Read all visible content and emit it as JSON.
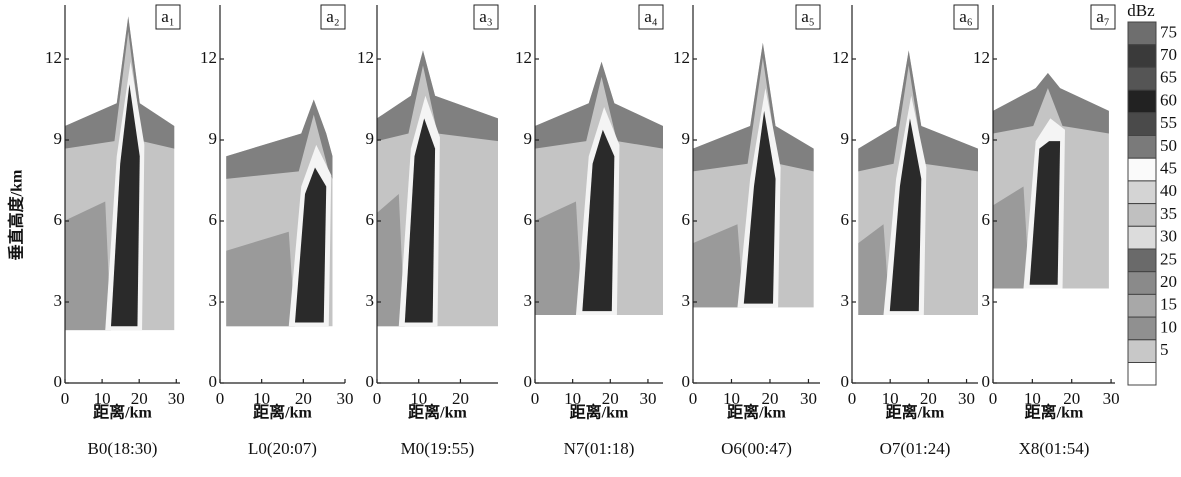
{
  "chart_data": [
    {
      "type": "radar-section",
      "panel_label": "a₁",
      "title": "B0(18:30)",
      "xlabel": "距离/km",
      "ylabel": "垂直高度/km",
      "xlim": [
        0,
        31
      ],
      "xticks": [
        0,
        10,
        20,
        30
      ],
      "ylim": [
        0,
        14
      ],
      "yticks": [
        0,
        3,
        6,
        9,
        12
      ]
    },
    {
      "type": "radar-section",
      "panel_label": "a₂",
      "title": "L0(20:07)",
      "xlabel": "距离/km",
      "xlim": [
        0,
        30
      ],
      "xticks": [
        0,
        10,
        20,
        30
      ],
      "ylim": [
        0,
        14
      ],
      "yticks": [
        0,
        3,
        6,
        9,
        12
      ]
    },
    {
      "type": "radar-section",
      "panel_label": "a₃",
      "title": "M0(19:55)",
      "xlabel": "距离/km",
      "xlim": [
        0,
        29
      ],
      "xticks": [
        0,
        10,
        20
      ],
      "ylim": [
        0,
        14
      ],
      "yticks": [
        0,
        3,
        6,
        9,
        12
      ]
    },
    {
      "type": "radar-section",
      "panel_label": "a₄",
      "title": "N7(01:18)",
      "xlabel": "距离/km",
      "xlim": [
        0,
        34
      ],
      "xticks": [
        0,
        10,
        20,
        30
      ],
      "ylim": [
        0,
        14
      ],
      "yticks": [
        0,
        3,
        6,
        9,
        12
      ]
    },
    {
      "type": "radar-section",
      "panel_label": "a₅",
      "title": "O6(00:47)",
      "xlabel": "距离/km",
      "xlim": [
        0,
        33
      ],
      "xticks": [
        0,
        10,
        20,
        30
      ],
      "ylim": [
        0,
        14
      ],
      "yticks": [
        0,
        3,
        6,
        9,
        12
      ]
    },
    {
      "type": "radar-section",
      "panel_label": "a₆",
      "title": "O7(01:24)",
      "xlabel": "距离/km",
      "xlim": [
        0,
        33
      ],
      "xticks": [
        0,
        10,
        20,
        30
      ],
      "ylim": [
        0,
        14
      ],
      "yticks": [
        0,
        3,
        6,
        9,
        12
      ]
    },
    {
      "type": "radar-section",
      "panel_label": "a₇",
      "title": "X8(01:54)",
      "xlabel": "距离/km",
      "xlim": [
        0,
        31
      ],
      "xticks": [
        0,
        10,
        20,
        30
      ],
      "ylim": [
        0,
        14
      ],
      "yticks": [
        0,
        3,
        6,
        9,
        12
      ]
    }
  ],
  "colorbar": {
    "title": "dBz",
    "levels": [
      75,
      70,
      65,
      60,
      55,
      50,
      45,
      40,
      35,
      30,
      25,
      20,
      15,
      10,
      5
    ],
    "colors": [
      "#6e6e6e",
      "#3a3a3a",
      "#555555",
      "#222222",
      "#4a4a4a",
      "#7a7a7a",
      "#fafafa",
      "#d4d4d4",
      "#c0c0c0",
      "#dcdcdc",
      "#6a6a6a",
      "#8a8a8a",
      "#a8a8a8",
      "#909090",
      "#c8c8c8"
    ]
  }
}
